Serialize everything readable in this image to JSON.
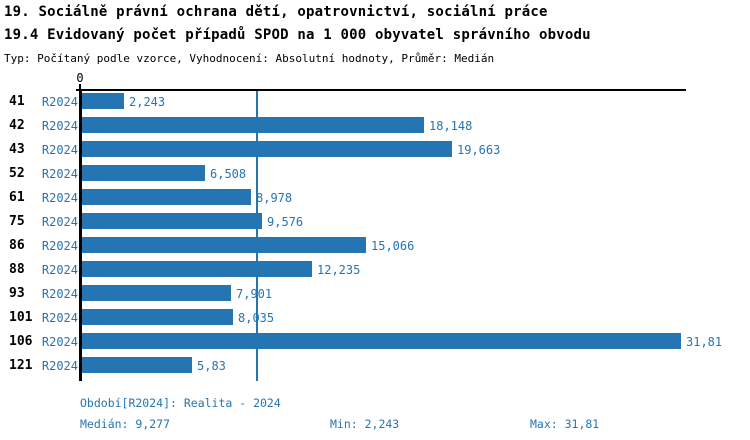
{
  "header": {
    "title": "19. Sociálně právní ochrana dětí, opatrovnictví, sociální práce",
    "subtitle": "19.4 Evidovaný počet případů SPOD na 1 000 obyvatel správního obvodu",
    "meta": "Typ: Počítaný podle vzorce, Vyhodnocení: Absolutní hodnoty, Průměr: Medián"
  },
  "colors": {
    "accent_blue": "#2575b2",
    "axis_black": "#000000",
    "background": "#ffffff"
  },
  "chart_data": {
    "type": "bar",
    "orientation": "horizontal",
    "title": "19.4 Evidovaný počet případů SPOD na 1 000 obyvatel správního obvodu",
    "categories": [
      "41",
      "42",
      "43",
      "52",
      "61",
      "75",
      "86",
      "88",
      "93",
      "101",
      "106",
      "121"
    ],
    "series": [
      {
        "name": "R2024",
        "values": [
          2.243,
          18.148,
          19.663,
          6.508,
          8.978,
          9.576,
          15.066,
          12.235,
          7.901,
          8.035,
          31.81,
          5.83
        ]
      }
    ],
    "value_labels": [
      "2,243",
      "18,148",
      "19,663",
      "6,508",
      "8,978",
      "9,576",
      "15,066",
      "12,235",
      "7,901",
      "8,035",
      "31,81",
      "5,83"
    ],
    "series_row_label": "R2024",
    "xlabel": "",
    "ylabel": "",
    "xlim": [
      0,
      32.1
    ],
    "axis_origin_label": "0",
    "grid": "off",
    "legend_position": "none",
    "median_value": 9.277,
    "min_value": 2.243,
    "max_value": 31.81
  },
  "footer": {
    "period": "Období[R2024]: Realita - 2024",
    "median": "Medián: 9,277",
    "min": "Min: 2,243",
    "max": "Max: 31,81"
  }
}
